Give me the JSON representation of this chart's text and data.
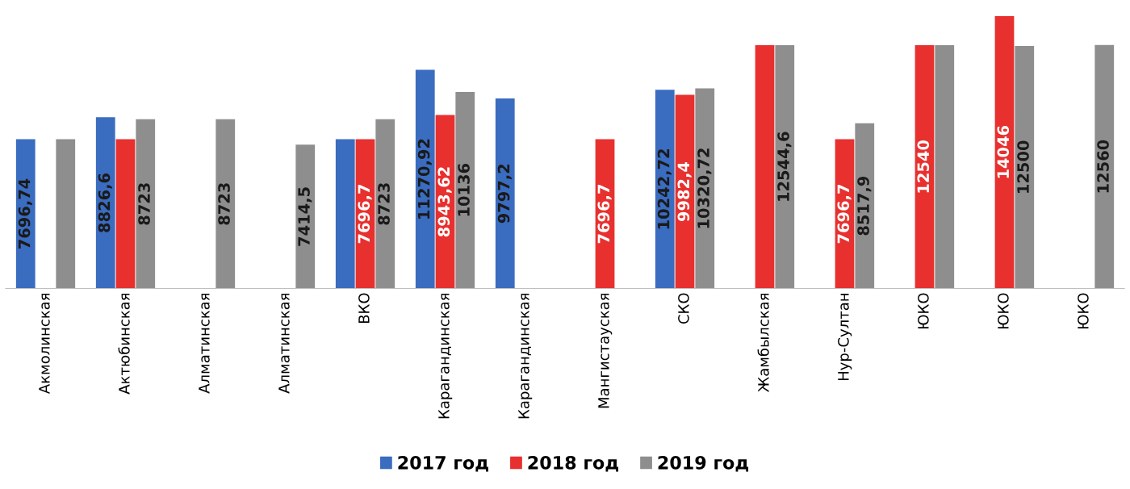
{
  "chart_data": {
    "type": "bar",
    "categories": [
      "Акмолинская",
      "Актюбинская",
      "Алматинская",
      "Алматинская",
      "ВКО",
      "Карагандинская",
      "Карагандинская",
      "Мангистауская",
      "СКО",
      "Жамбылская",
      "Нур-Султан",
      "ЮКО",
      "ЮКО",
      "ЮКО"
    ],
    "series": [
      {
        "name": "2017 год",
        "color": "#3a6cc0",
        "values": [
          7696.74,
          8826.6,
          null,
          null,
          7696.7,
          11270.92,
          9797.2,
          null,
          10242.72,
          null,
          null,
          null,
          null,
          null
        ],
        "value_labels": [
          "7696,74",
          "8826,6",
          null,
          null,
          null,
          "11270,92",
          "9797,2",
          null,
          "10242,72",
          null,
          null,
          null,
          null,
          null
        ]
      },
      {
        "name": "2018 год",
        "color": "#e8302f",
        "values": [
          null,
          7696.7,
          null,
          null,
          7696.7,
          8943.62,
          null,
          7696.7,
          9982.4,
          12544.6,
          7696.7,
          12540,
          14046,
          null
        ],
        "value_labels": [
          null,
          null,
          null,
          null,
          "7696,7",
          "8943,62",
          null,
          "7696,7",
          "9982,4",
          null,
          "7696,7",
          "12540",
          "14046",
          null
        ]
      },
      {
        "name": "2019 год",
        "color": "#8e8e8e",
        "values": [
          7696.74,
          8723,
          8723,
          7414.5,
          8723,
          10136,
          null,
          null,
          10320.72,
          12544.6,
          8517.9,
          12540,
          12500,
          12560
        ],
        "value_labels": [
          null,
          "8723",
          "8723",
          "7414,5",
          "8723",
          "10136",
          null,
          null,
          "10320,72",
          "12544,6",
          "8517,9",
          null,
          "12500",
          "12560"
        ]
      }
    ],
    "legend": "bottom",
    "grid": false,
    "tick_labels": "x"
  }
}
